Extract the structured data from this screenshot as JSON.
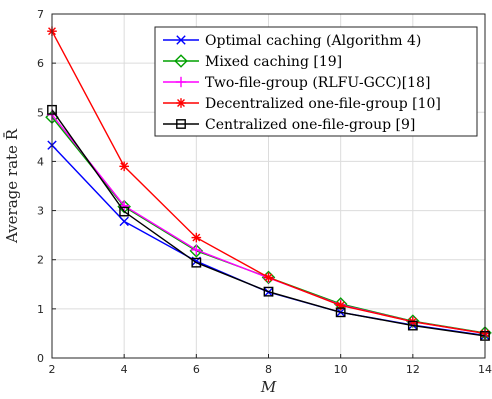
{
  "chart_data": {
    "type": "line",
    "xlabel": "M",
    "ylabel": "Average rate R̄",
    "x": [
      2,
      4,
      6,
      8,
      10,
      12,
      14
    ],
    "xlim": [
      2,
      14
    ],
    "ylim": [
      0,
      7
    ],
    "xticks": [
      "2",
      "4",
      "6",
      "8",
      "10",
      "12",
      "14"
    ],
    "yticks": [
      "0",
      "1",
      "2",
      "3",
      "4",
      "5",
      "6",
      "7"
    ],
    "grid": true,
    "legend_position": "top-right",
    "series": [
      {
        "name": "Optimal caching (Algorithm 4)",
        "color": "#0000FF",
        "marker": "x",
        "values": [
          4.33,
          2.78,
          1.97,
          1.34,
          0.93,
          0.67,
          0.46
        ]
      },
      {
        "name": "Mixed caching [19]",
        "color": "#00A000",
        "marker": "diamond",
        "values": [
          4.9,
          3.08,
          2.18,
          1.64,
          1.1,
          0.75,
          0.51
        ]
      },
      {
        "name": "Two-file-group (RLFU-GCC)[18]",
        "color": "#FF00FF",
        "marker": "plus",
        "values": [
          4.95,
          3.1,
          2.2,
          1.63,
          1.08,
          0.74,
          0.5
        ]
      },
      {
        "name": "Decentralized one-file-group [10]",
        "color": "#FF0000",
        "marker": "asterisk",
        "values": [
          6.65,
          3.9,
          2.45,
          1.64,
          1.07,
          0.74,
          0.5
        ]
      },
      {
        "name": "Centralized one-file-group [9]",
        "color": "#000000",
        "marker": "square",
        "values": [
          5.05,
          2.98,
          1.94,
          1.35,
          0.93,
          0.66,
          0.45
        ]
      }
    ]
  }
}
